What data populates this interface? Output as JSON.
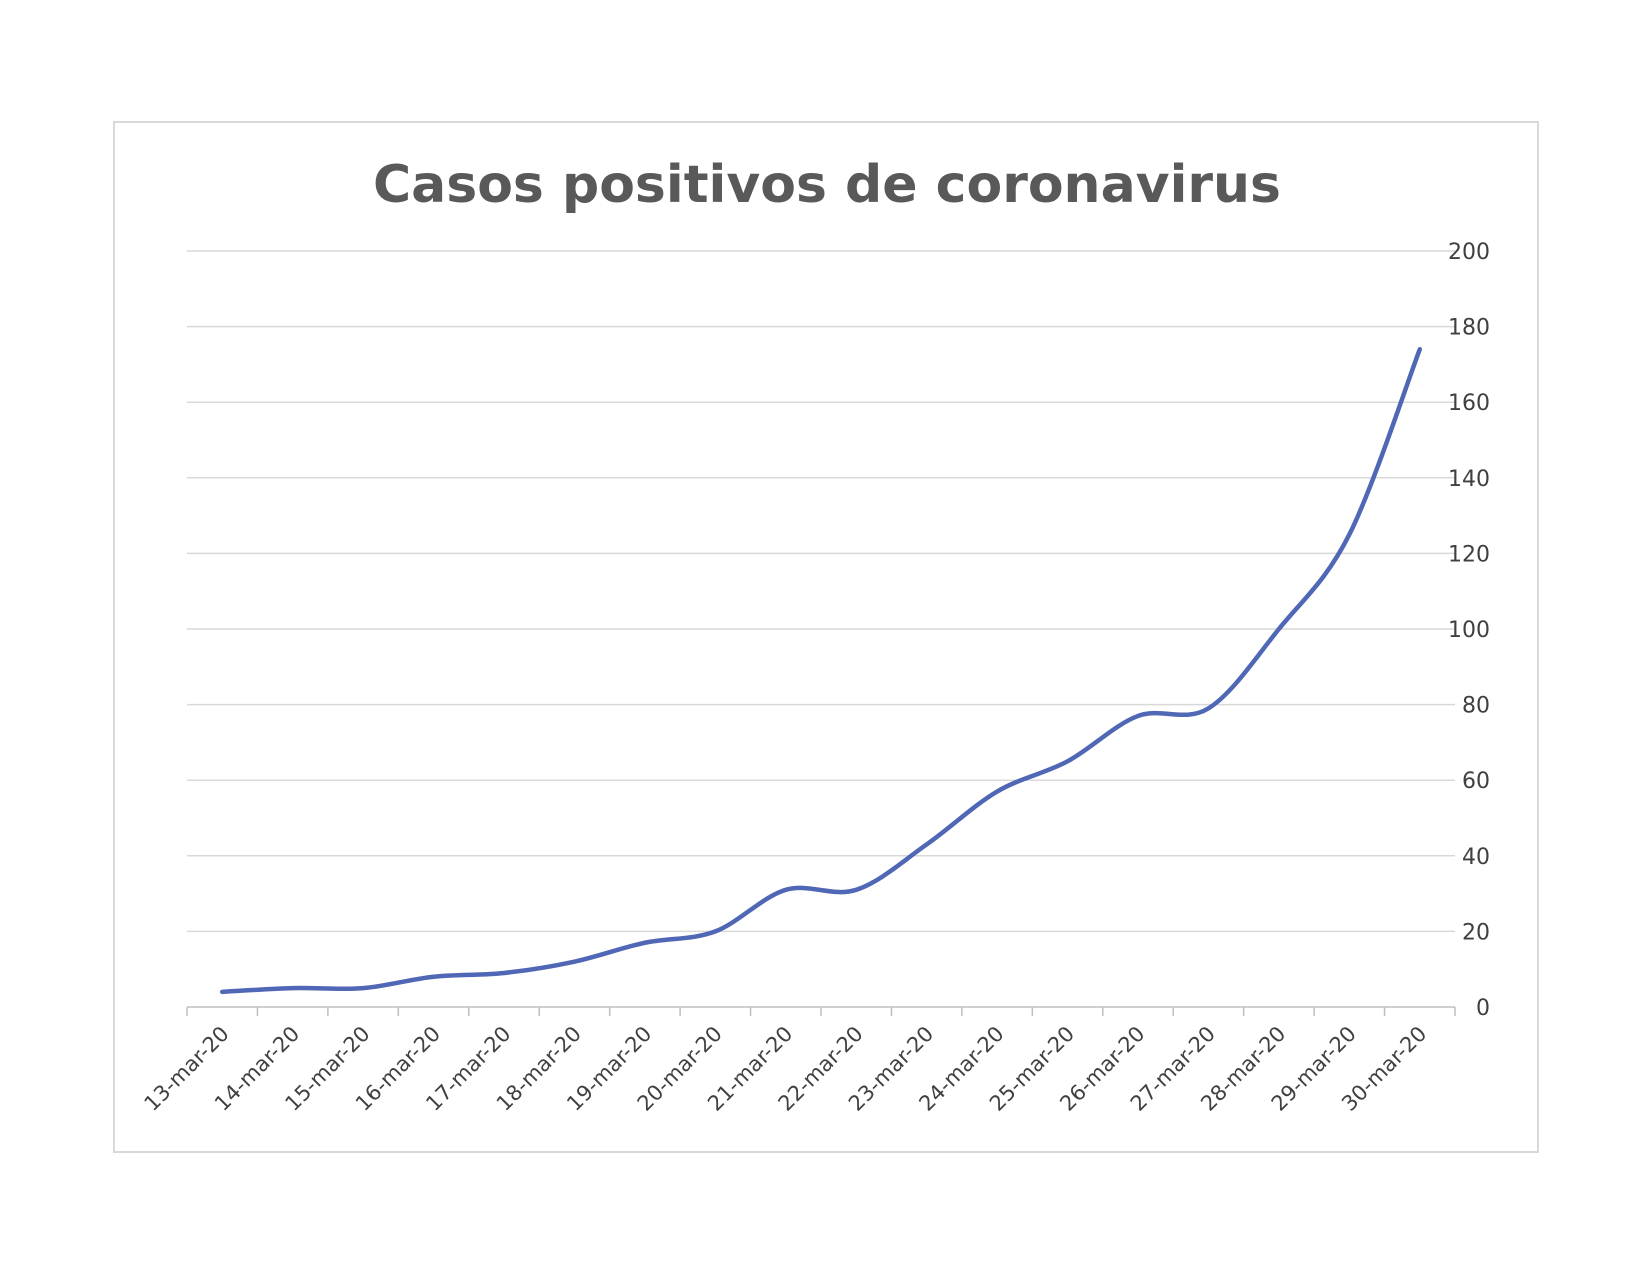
{
  "chart_data": {
    "type": "line",
    "title": "Casos positivos de coronavirus",
    "categories": [
      "13-mar-20",
      "14-mar-20",
      "15-mar-20",
      "16-mar-20",
      "17-mar-20",
      "18-mar-20",
      "19-mar-20",
      "20-mar-20",
      "21-mar-20",
      "22-mar-20",
      "23-mar-20",
      "24-mar-20",
      "25-mar-20",
      "26-mar-20",
      "27-mar-20",
      "28-mar-20",
      "29-mar-20",
      "30-mar-20"
    ],
    "series": [
      {
        "values": [
          4,
          5,
          5,
          8,
          9,
          12,
          17,
          20,
          31,
          31,
          43,
          57,
          65,
          77,
          79,
          100,
          125,
          174
        ]
      }
    ],
    "ylim": [
      0,
      200
    ],
    "yticks": [
      0,
      20,
      40,
      60,
      80,
      100,
      120,
      140,
      160,
      180,
      200
    ],
    "y_axis_position": "right",
    "grid": true,
    "smooth": true,
    "line_color": "#4f67b5",
    "xlabel": "",
    "ylabel": ""
  }
}
